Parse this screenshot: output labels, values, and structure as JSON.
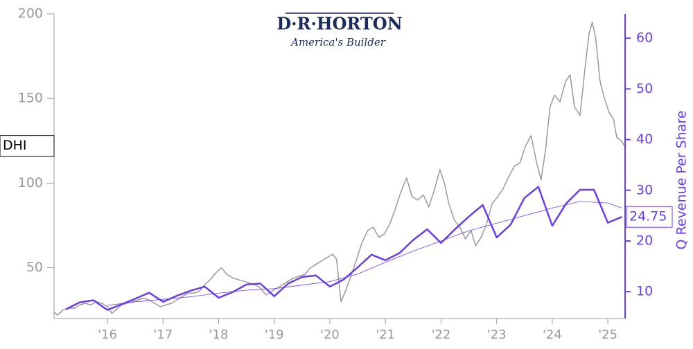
{
  "chart_data": {
    "type": "line",
    "logo_text": "D·R·HORTON",
    "logo_tagline": "America's Builder",
    "y2_label": "Q Revenue Per Share",
    "xlim": [
      2015.04,
      2025.31
    ],
    "xticks": [
      {
        "value": 2016,
        "label": "'16"
      },
      {
        "value": 2017,
        "label": "'17"
      },
      {
        "value": 2018,
        "label": "'18"
      },
      {
        "value": 2019,
        "label": "'19"
      },
      {
        "value": 2020,
        "label": "'20"
      },
      {
        "value": 2021,
        "label": "'21"
      },
      {
        "value": 2022,
        "label": "'22"
      },
      {
        "value": 2023,
        "label": "'23"
      },
      {
        "value": 2024,
        "label": "'24"
      },
      {
        "value": 2025,
        "label": "'25"
      }
    ],
    "ylim": [
      20,
      200
    ],
    "yticks": [
      50,
      100,
      150,
      200
    ],
    "y2lim": [
      4.7,
      64.8
    ],
    "y2ticks": [
      10,
      20,
      30,
      40,
      50,
      60
    ],
    "series": [
      {
        "name": "DHI",
        "color": "#999999",
        "axis": "y",
        "width": 1.5,
        "x": [
          2015.04,
          2015.1,
          2015.2,
          2015.3,
          2015.4,
          2015.5,
          2015.6,
          2015.7,
          2015.8,
          2015.9,
          2016.0,
          2016.08,
          2016.15,
          2016.25,
          2016.35,
          2016.45,
          2016.55,
          2016.65,
          2016.75,
          2016.85,
          2016.95,
          2017.05,
          2017.15,
          2017.25,
          2017.35,
          2017.45,
          2017.55,
          2017.65,
          2017.75,
          2017.85,
          2017.95,
          2018.05,
          2018.15,
          2018.25,
          2018.35,
          2018.45,
          2018.55,
          2018.65,
          2018.75,
          2018.85,
          2018.95,
          2019.05,
          2019.15,
          2019.25,
          2019.35,
          2019.45,
          2019.55,
          2019.65,
          2019.75,
          2019.85,
          2019.95,
          2020.05,
          2020.12,
          2020.2,
          2020.28,
          2020.38,
          2020.48,
          2020.58,
          2020.68,
          2020.78,
          2020.88,
          2020.98,
          2021.08,
          2021.18,
          2021.28,
          2021.38,
          2021.48,
          2021.58,
          2021.68,
          2021.78,
          2021.88,
          2021.98,
          2022.06,
          2022.14,
          2022.24,
          2022.34,
          2022.44,
          2022.54,
          2022.62,
          2022.72,
          2022.82,
          2022.92,
          2023.02,
          2023.12,
          2023.22,
          2023.32,
          2023.42,
          2023.52,
          2023.62,
          2023.72,
          2023.8,
          2023.88,
          2023.96,
          2024.04,
          2024.14,
          2024.24,
          2024.32,
          2024.4,
          2024.5,
          2024.58,
          2024.66,
          2024.72,
          2024.78,
          2024.86,
          2024.94,
          2025.02,
          2025.1,
          2025.16,
          2025.24,
          2025.3
        ],
        "values": [
          24,
          22,
          25,
          26,
          26,
          28,
          29,
          28,
          30,
          29,
          27,
          23,
          25,
          28,
          29,
          30,
          31,
          32,
          31,
          29,
          27,
          28,
          29,
          31,
          33,
          35,
          35,
          36,
          40,
          43,
          47,
          50,
          46,
          44,
          43,
          42,
          41,
          40,
          38,
          34,
          36,
          38,
          40,
          42,
          44,
          45,
          46,
          50,
          52,
          54,
          56,
          58,
          55,
          30,
          36,
          45,
          55,
          65,
          72,
          74,
          68,
          70,
          76,
          85,
          95,
          103,
          92,
          90,
          93,
          86,
          96,
          108,
          100,
          88,
          78,
          74,
          67,
          72,
          63,
          68,
          76,
          88,
          92,
          97,
          104,
          110,
          112,
          122,
          128,
          112,
          102,
          120,
          145,
          152,
          148,
          160,
          164,
          145,
          140,
          165,
          188,
          195,
          186,
          160,
          150,
          142,
          138,
          127,
          125,
          122
        ]
      },
      {
        "name": "Q Revenue Per Share",
        "color": "#6a3de8",
        "axis": "y2",
        "width": 2.5,
        "x": [
          2015.25,
          2015.5,
          2015.75,
          2016.0,
          2016.25,
          2016.5,
          2016.75,
          2017.0,
          2017.25,
          2017.5,
          2017.75,
          2018.0,
          2018.25,
          2018.5,
          2018.75,
          2019.0,
          2019.25,
          2019.5,
          2019.75,
          2020.0,
          2020.25,
          2020.5,
          2020.75,
          2021.0,
          2021.25,
          2021.5,
          2021.75,
          2022.0,
          2022.25,
          2022.5,
          2022.75,
          2023.0,
          2023.25,
          2023.5,
          2023.75,
          2024.0,
          2024.25,
          2024.5,
          2024.75,
          2025.0,
          2025.25
        ],
        "values": [
          6.5,
          7.9,
          8.3,
          6.4,
          7.5,
          8.6,
          9.8,
          8.0,
          9.2,
          10.2,
          11.0,
          8.8,
          9.9,
          11.4,
          11.6,
          9.1,
          11.6,
          12.9,
          13.2,
          11.0,
          12.4,
          14.8,
          17.3,
          16.2,
          17.6,
          20.2,
          22.3,
          19.6,
          22.3,
          24.8,
          27.1,
          20.7,
          23.2,
          28.5,
          30.7,
          23.0,
          27.4,
          30.1,
          30.1,
          23.6,
          24.75
        ],
        "value_labels": [
          null,
          null,
          null,
          null,
          null,
          null,
          null,
          null,
          null,
          null,
          null,
          null,
          null,
          null,
          null,
          null,
          null,
          null,
          null,
          null,
          null,
          null,
          null,
          null,
          null,
          null,
          null,
          null,
          null,
          null,
          null,
          null,
          null,
          null,
          null,
          null,
          null,
          null,
          null,
          null,
          "24.75"
        ]
      },
      {
        "color": "#6a3de8",
        "axis": "y2",
        "width": 0.8,
        "x": [
          2016.0,
          2016.5,
          2017.0,
          2017.5,
          2018.0,
          2018.5,
          2019.0,
          2019.5,
          2020.0,
          2020.5,
          2021.0,
          2021.5,
          2022.0,
          2022.5,
          2023.0,
          2023.5,
          2024.0,
          2024.5,
          2025.0,
          2025.25
        ],
        "values": [
          7.3,
          8.0,
          8.5,
          9.0,
          9.7,
          10.3,
          10.6,
          11.3,
          12.0,
          13.5,
          15.8,
          18.0,
          20.0,
          22.0,
          23.5,
          25.0,
          26.5,
          27.8,
          27.5,
          26.5
        ]
      }
    ]
  }
}
